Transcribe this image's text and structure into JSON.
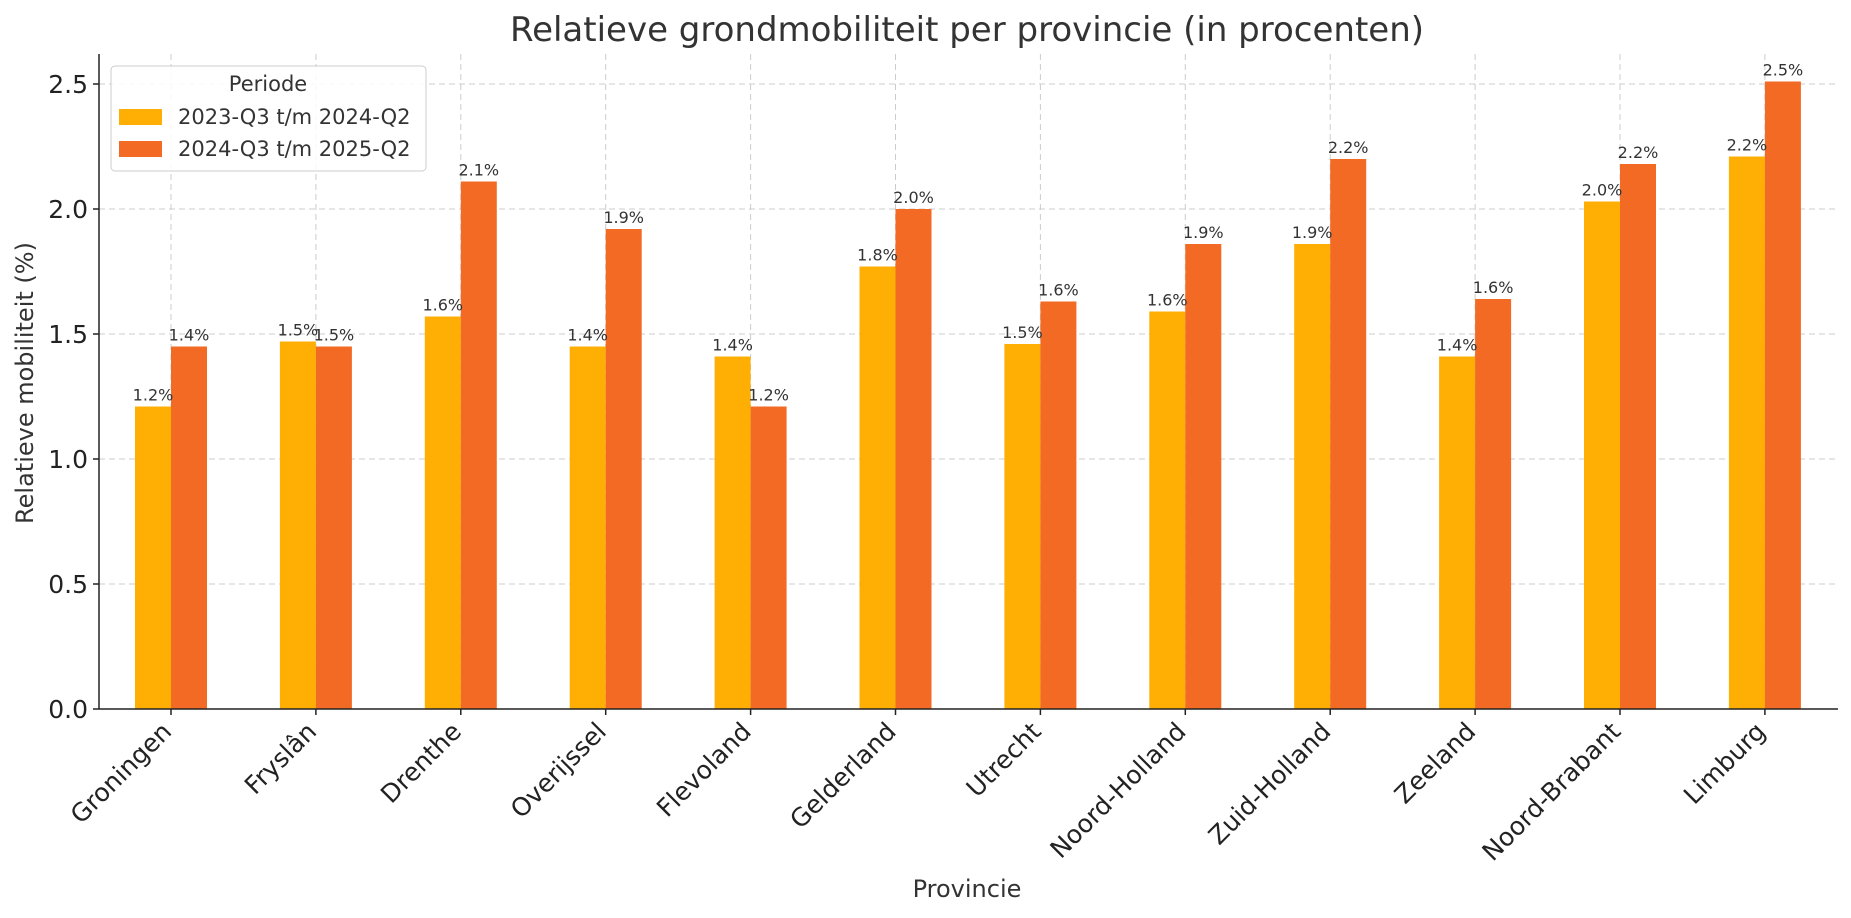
{
  "chart_data": {
    "type": "bar",
    "title": "Relatieve grondmobiliteit per provincie (in procenten)",
    "xlabel": "Provincie",
    "ylabel": "Relatieve mobiliteit (%)",
    "ylim": [
      0,
      2.62
    ],
    "yticks": [
      "0.0",
      "0.5",
      "1.0",
      "1.5",
      "2.0",
      "2.5"
    ],
    "grid": true,
    "legend": {
      "title": "Periode",
      "position": "top-left"
    },
    "categories": [
      "Groningen",
      "Fryslân",
      "Drenthe",
      "Overijssel",
      "Flevoland",
      "Gelderland",
      "Utrecht",
      "Noord-Holland",
      "Zuid-Holland",
      "Zeeland",
      "Noord-Brabant",
      "Limburg"
    ],
    "series": [
      {
        "name": "2023-Q3 t/m 2024-Q2",
        "color": "#FFAE03",
        "values": [
          1.21,
          1.47,
          1.57,
          1.45,
          1.41,
          1.77,
          1.46,
          1.59,
          1.86,
          1.41,
          2.03,
          2.21
        ],
        "labels": [
          "1.2%",
          "1.5%",
          "1.6%",
          "1.4%",
          "1.4%",
          "1.8%",
          "1.5%",
          "1.6%",
          "1.9%",
          "1.4%",
          "2.0%",
          "2.2%"
        ]
      },
      {
        "name": "2024-Q3 t/m 2025-Q2",
        "color": "#F26A24",
        "values": [
          1.45,
          1.45,
          2.11,
          1.92,
          1.21,
          2.0,
          1.63,
          1.86,
          2.2,
          1.64,
          2.18,
          2.51
        ],
        "labels": [
          "1.4%",
          "1.5%",
          "2.1%",
          "1.9%",
          "1.2%",
          "2.0%",
          "1.6%",
          "1.9%",
          "2.2%",
          "1.6%",
          "2.2%",
          "2.5%"
        ]
      }
    ]
  }
}
